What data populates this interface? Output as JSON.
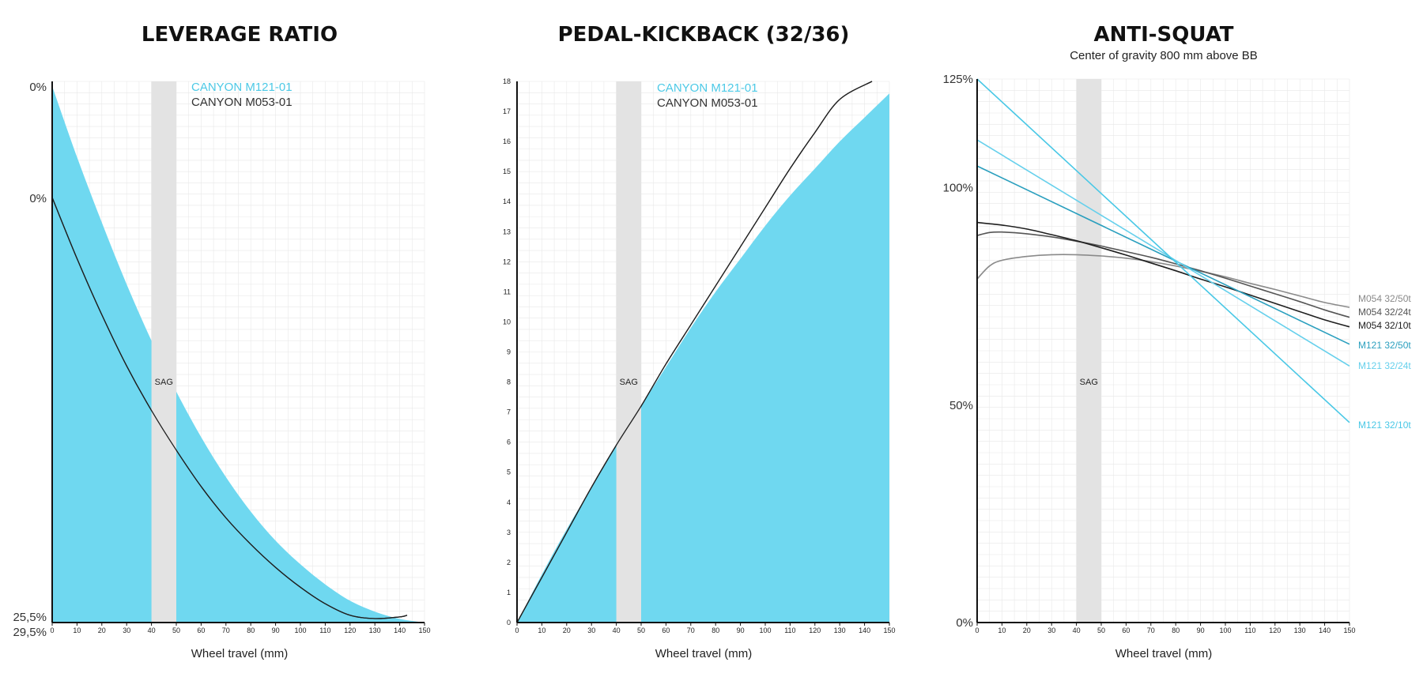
{
  "colors": {
    "cyan": "#6fd8f0",
    "cyan_line": "#4cc9e6",
    "dark": "#1f1f1f",
    "sag_band": "#e3e3e3",
    "grid": "#e8e8e8"
  },
  "chart_data": [
    {
      "type": "area",
      "title": "LEVERAGE RATIO",
      "xlabel": "Wheel travel (mm)",
      "xlim": [
        0,
        150
      ],
      "x_ticks": [
        0,
        10,
        20,
        30,
        40,
        50,
        60,
        70,
        80,
        90,
        100,
        110,
        120,
        130,
        140,
        150
      ],
      "sag_band": [
        40,
        50
      ],
      "sag_label": "SAG",
      "legend": [
        "CANYON M121-01",
        "CANYON M053-01"
      ],
      "y_labels_left": [
        {
          "text": "0%",
          "series": "CANYON M121-01"
        },
        {
          "text": "0%",
          "series": "CANYON M053-01"
        },
        {
          "text": "25,5%",
          "series": "CANYON M053-01"
        },
        {
          "text": "29,5%",
          "series": "CANYON M121-01"
        }
      ],
      "series": [
        {
          "name": "CANYON M121-01",
          "style": "area",
          "x": [
            0,
            10,
            20,
            30,
            40,
            50,
            60,
            70,
            80,
            90,
            100,
            110,
            120,
            130,
            140,
            150
          ],
          "y": [
            0.0,
            3.9,
            7.5,
            10.9,
            14.0,
            16.8,
            19.3,
            21.5,
            23.4,
            25.0,
            26.3,
            27.4,
            28.3,
            28.9,
            29.3,
            29.5
          ]
        },
        {
          "name": "CANYON M053-01",
          "style": "line",
          "x": [
            0,
            10,
            20,
            30,
            40,
            50,
            60,
            70,
            80,
            90,
            100,
            110,
            120,
            130,
            140,
            143
          ],
          "y": [
            0.0,
            3.7,
            7.1,
            10.2,
            12.9,
            15.3,
            17.5,
            19.4,
            21.0,
            22.4,
            23.6,
            24.6,
            25.3,
            25.5,
            25.4,
            25.3
          ]
        }
      ]
    },
    {
      "type": "area",
      "title": "PEDAL-KICKBACK (32/36)",
      "xlabel": "Wheel travel (mm)",
      "xlim": [
        0,
        150
      ],
      "ylim": [
        0,
        18
      ],
      "x_ticks": [
        0,
        10,
        20,
        30,
        40,
        50,
        60,
        70,
        80,
        90,
        100,
        110,
        120,
        130,
        140,
        150
      ],
      "y_ticks": [
        0,
        1,
        2,
        3,
        4,
        5,
        6,
        7,
        8,
        9,
        10,
        11,
        12,
        13,
        14,
        15,
        16,
        17,
        18
      ],
      "sag_band": [
        40,
        50
      ],
      "sag_label": "SAG",
      "legend": [
        "CANYON M121-01",
        "CANYON M053-01"
      ],
      "series": [
        {
          "name": "CANYON M121-01",
          "style": "area",
          "x": [
            0,
            10,
            20,
            30,
            40,
            50,
            60,
            70,
            80,
            90,
            100,
            110,
            120,
            130,
            140,
            150
          ],
          "y": [
            0.0,
            1.6,
            3.1,
            4.5,
            5.9,
            7.2,
            8.5,
            9.8,
            11.0,
            12.1,
            13.2,
            14.2,
            15.1,
            16.0,
            16.8,
            17.6
          ]
        },
        {
          "name": "CANYON M053-01",
          "style": "line",
          "x": [
            0,
            10,
            20,
            30,
            40,
            50,
            60,
            70,
            80,
            90,
            100,
            110,
            120,
            130,
            143
          ],
          "y": [
            0.0,
            1.5,
            3.0,
            4.5,
            5.9,
            7.2,
            8.6,
            9.9,
            11.2,
            12.5,
            13.8,
            15.1,
            16.3,
            17.4,
            18.0
          ]
        }
      ]
    },
    {
      "type": "line",
      "title": "ANTI-SQUAT",
      "subtitle": "Center of gravity 800 mm above BB",
      "xlabel": "Wheel travel (mm)",
      "xlim": [
        0,
        150
      ],
      "ylim": [
        0,
        125
      ],
      "x_ticks": [
        0,
        10,
        20,
        30,
        40,
        50,
        60,
        70,
        80,
        90,
        100,
        110,
        120,
        130,
        140,
        150
      ],
      "y_ticks": [
        {
          "value": 0,
          "label": "0%"
        },
        {
          "value": 50,
          "label": "50%"
        },
        {
          "value": 100,
          "label": "100%"
        },
        {
          "value": 125,
          "label": "125%"
        }
      ],
      "sag_band": [
        40,
        50
      ],
      "sag_label": "SAG",
      "series": [
        {
          "name": "M054 32/50t",
          "color": "#8a8a8a",
          "x": [
            0,
            5,
            10,
            20,
            30,
            40,
            50,
            60,
            70,
            80,
            90,
            100,
            110,
            120,
            130,
            140,
            150
          ],
          "y": [
            79,
            82,
            83.3,
            84.2,
            84.6,
            84.6,
            84.3,
            83.8,
            83.0,
            82.0,
            80.8,
            79.5,
            78.0,
            76.6,
            75.1,
            73.6,
            72.5
          ]
        },
        {
          "name": "M054 32/24t",
          "color": "#555555",
          "x": [
            0,
            5,
            10,
            20,
            30,
            40,
            50,
            60,
            70,
            80,
            90,
            100,
            110,
            120,
            130,
            140,
            150
          ],
          "y": [
            89,
            89.7,
            89.8,
            89.4,
            88.7,
            87.7,
            86.6,
            85.3,
            84.0,
            82.5,
            80.9,
            79.2,
            77.4,
            75.6,
            73.8,
            71.9,
            70.2
          ]
        },
        {
          "name": "M054 32/10t",
          "color": "#1f1f1f",
          "x": [
            0,
            10,
            20,
            30,
            40,
            50,
            60,
            70,
            80,
            90,
            100,
            110,
            120,
            130,
            140,
            150
          ],
          "y": [
            92,
            91.4,
            90.5,
            89.2,
            87.8,
            86.2,
            84.5,
            82.7,
            80.9,
            79.0,
            77.2,
            75.3,
            73.4,
            71.5,
            69.6,
            68.0
          ]
        },
        {
          "name": "M121 32/50t",
          "color": "#2a9fbe",
          "x": [
            0,
            150
          ],
          "y": [
            105,
            64
          ]
        },
        {
          "name": "M121 32/24t",
          "color": "#66d0ec",
          "x": [
            0,
            150
          ],
          "y": [
            111,
            59
          ]
        },
        {
          "name": "M121 32/10t",
          "color": "#49c8e6",
          "x": [
            0,
            150
          ],
          "y": [
            125,
            46
          ]
        }
      ]
    }
  ]
}
